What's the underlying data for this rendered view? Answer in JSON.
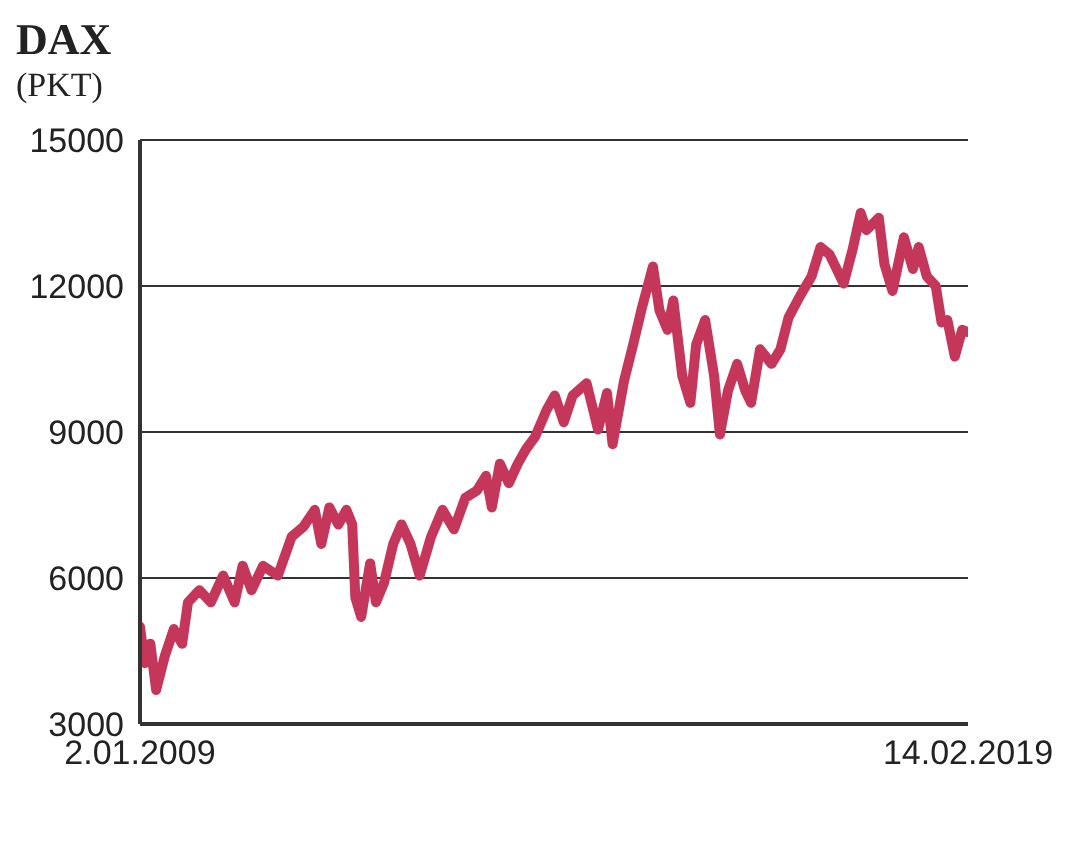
{
  "chart_data": {
    "type": "line",
    "title": "DAX",
    "subtitle": "(PKT)",
    "x": [
      "2009-01-02",
      "2009-01-23",
      "2009-02-17",
      "2009-03-15",
      "2009-04-23",
      "2009-06-02",
      "2009-07-09",
      "2009-08-04",
      "2009-09-24",
      "2009-11-14",
      "2010-01-08",
      "2010-02-28",
      "2010-04-05",
      "2010-05-15",
      "2010-07-05",
      "2010-09-09",
      "2010-11-10",
      "2011-01-01",
      "2011-02-21",
      "2011-03-22",
      "2011-04-27",
      "2011-06-06",
      "2011-07-12",
      "2011-08-07",
      "2011-08-21",
      "2011-09-16",
      "2011-10-26",
      "2011-11-21",
      "2011-12-27",
      "2012-02-06",
      "2012-03-14",
      "2012-04-23",
      "2012-06-03",
      "2012-07-24",
      "2012-09-13",
      "2012-11-03",
      "2012-12-24",
      "2013-02-14",
      "2013-03-26",
      "2013-04-21",
      "2013-05-27",
      "2013-07-06",
      "2013-08-15",
      "2013-09-21",
      "2013-10-31",
      "2013-12-21",
      "2014-01-27",
      "2014-03-08",
      "2014-04-17",
      "2014-06-18",
      "2014-08-08",
      "2014-09-17",
      "2014-10-12",
      "2014-12-02",
      "2015-01-12",
      "2015-02-17",
      "2015-04-10",
      "2015-05-09",
      "2015-06-14",
      "2015-07-10",
      "2015-08-19",
      "2015-09-24",
      "2015-10-20",
      "2015-11-29",
      "2016-01-08",
      "2016-02-03",
      "2016-03-10",
      "2016-04-20",
      "2016-05-26",
      "2016-06-21",
      "2016-07-31",
      "2016-09-20",
      "2016-10-30",
      "2016-12-05",
      "2017-01-26",
      "2017-03-18",
      "2017-04-27",
      "2017-06-06",
      "2017-08-08",
      "2017-09-17",
      "2017-10-23",
      "2017-11-18",
      "2018-01-12",
      "2018-02-06",
      "2018-03-14",
      "2018-05-04",
      "2018-06-13",
      "2018-07-09",
      "2018-08-14",
      "2018-09-23",
      "2018-10-19",
      "2018-11-14",
      "2018-12-17",
      "2019-01-19",
      "2019-02-14"
    ],
    "series": [
      {
        "color": "#c4375a",
        "values": [
          5000,
          4250,
          4650,
          3700,
          4400,
          4950,
          4650,
          5500,
          5750,
          5500,
          6050,
          5500,
          6250,
          5750,
          6250,
          6050,
          6850,
          7050,
          7400,
          6700,
          7450,
          7100,
          7400,
          7100,
          5600,
          5200,
          6300,
          5500,
          5900,
          6700,
          7100,
          6700,
          6050,
          6850,
          7400,
          7000,
          7650,
          7800,
          8100,
          7450,
          8350,
          7950,
          8350,
          8650,
          8900,
          9450,
          9750,
          9200,
          9750,
          10000,
          9050,
          9800,
          8750,
          10050,
          10800,
          11500,
          12400,
          11500,
          11100,
          11700,
          10150,
          9600,
          10800,
          11300,
          10150,
          8950,
          9850,
          10400,
          9850,
          9600,
          10700,
          10400,
          10700,
          11350,
          11800,
          12200,
          12800,
          12650,
          12050,
          12750,
          13500,
          13150,
          13400,
          12450,
          11900,
          13000,
          12350,
          12800,
          12200,
          12000,
          11250,
          11300,
          10550,
          11100,
          11050
        ]
      }
    ],
    "xlim": [
      "2009-01-02",
      "2019-02-14"
    ],
    "xticks": [
      {
        "value": "2009-01-02",
        "label": "2.01.2009"
      },
      {
        "value": "2019-02-14",
        "label": "14.02.2019"
      }
    ],
    "ylim": [
      3000,
      15000
    ],
    "yticks": [
      3000,
      6000,
      9000,
      12000,
      15000
    ],
    "grid": "y",
    "marker": "none",
    "line_style": "solid"
  }
}
